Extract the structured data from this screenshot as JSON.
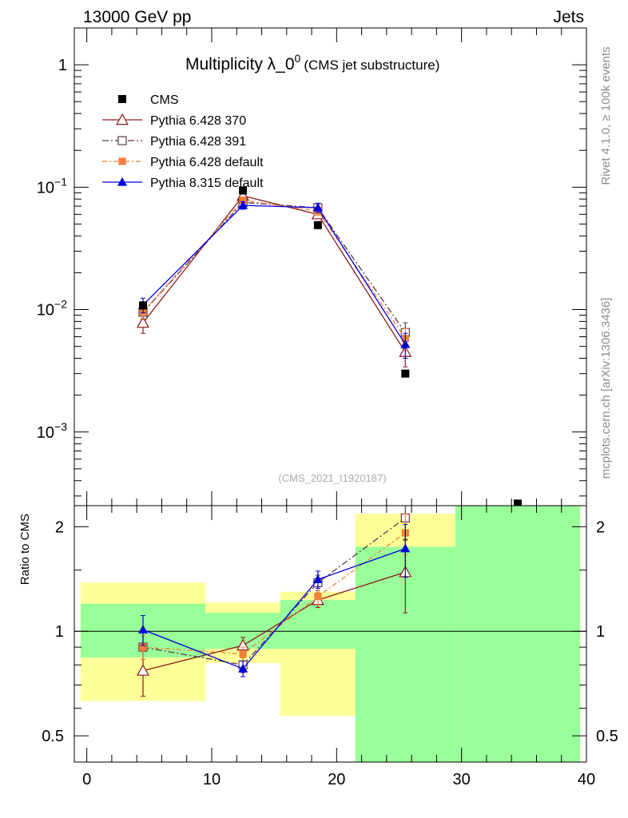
{
  "header": {
    "energy": "13000 GeV pp",
    "process": "Jets"
  },
  "side_labels": {
    "rivet": "Rivet 4.1.0, ≥ 100k events",
    "source": "mcplots.cern.ch [arXiv:1306.3436]"
  },
  "colors": {
    "cms": "#000000",
    "p370": "#8b1a1a",
    "p391": "#5a3a4a",
    "p6def": "#f47f3c",
    "p8": "#0000e0",
    "band_green": "#99ff99",
    "band_yellow": "#ffff99"
  },
  "chart_data": [
    {
      "type": "scatter",
      "panel": "main",
      "title": "Multiplicity λ_0",
      "title_sup": "0",
      "subtitle": "(CMS jet substructure)",
      "watermark": "(CMS_2021_I1920187)",
      "yscale": "log",
      "ylim": [
        0.00025,
        2
      ],
      "xlim": [
        -1,
        40
      ],
      "yticks": [
        {
          "value": 1,
          "base": "1",
          "exp": ""
        },
        {
          "value": 0.1,
          "base": "10",
          "exp": "−1"
        },
        {
          "value": 0.01,
          "base": "10",
          "exp": "−2"
        },
        {
          "value": 0.001,
          "base": "10",
          "exp": "−3"
        }
      ],
      "x": [
        4.5,
        12.5,
        18.5,
        25.5
      ],
      "cms": {
        "name": "CMS",
        "x": [
          4.5,
          12.5,
          18.5,
          25.5,
          34.5
        ],
        "values": [
          0.0108,
          0.094,
          0.049,
          0.003,
          0.00026
        ]
      },
      "series": [
        {
          "name": "Pythia 6.428 370",
          "values": [
            0.0078,
            0.085,
            0.06,
            0.0045
          ],
          "err": [
            0.0014,
            0.005,
            0.004,
            0.0011
          ]
        },
        {
          "name": "Pythia 6.428 391",
          "values": [
            0.0095,
            0.075,
            0.068,
            0.0065
          ],
          "err": [
            0.0012,
            0.005,
            0.005,
            0.0013
          ]
        },
        {
          "name": "Pythia 6.428 default",
          "values": [
            0.0096,
            0.078,
            0.064,
            0.0058
          ],
          "err": [
            0.0012,
            0.005,
            0.005,
            0.0012
          ]
        },
        {
          "name": "Pythia 8.315 default",
          "values": [
            0.0109,
            0.071,
            0.068,
            0.0052
          ],
          "err": [
            0.0015,
            0.005,
            0.006,
            0.0012
          ]
        }
      ]
    },
    {
      "type": "scatter",
      "panel": "ratio",
      "ylabel": "Ratio to CMS",
      "yscale": "log",
      "ylim": [
        0.42,
        2.3
      ],
      "xlim": [
        -1,
        40
      ],
      "yticks": [
        {
          "value": 0.5,
          "label": "0.5"
        },
        {
          "value": 1,
          "label": "1"
        },
        {
          "value": 2,
          "label": "2"
        }
      ],
      "xticks": [
        0,
        10,
        20,
        30,
        40
      ],
      "bands": [
        {
          "x": [
            -0.5,
            9.5
          ],
          "green": [
            0.84,
            1.2
          ],
          "yellow": [
            0.63,
            1.38
          ]
        },
        {
          "x": [
            9.5,
            15.5
          ],
          "green": [
            0.89,
            1.13
          ],
          "yellow": [
            0.81,
            1.21
          ]
        },
        {
          "x": [
            15.5,
            21.5
          ],
          "green": [
            0.89,
            1.23
          ],
          "yellow": [
            0.57,
            1.3
          ]
        },
        {
          "x": [
            21.5,
            29.5
          ],
          "green": [
            0.42,
            1.75
          ],
          "yellow": [
            0.42,
            2.18
          ]
        },
        {
          "x": [
            29.5,
            39.5
          ],
          "green": [
            0.42,
            2.3
          ],
          "yellow": [
            0.42,
            2.3
          ]
        }
      ],
      "x": [
        4.5,
        12.5,
        18.5,
        25.5
      ],
      "series": [
        {
          "name": "Pythia 6.428 370",
          "values": [
            0.77,
            0.91,
            1.23,
            1.48
          ],
          "err": [
            0.12,
            0.05,
            0.06,
            0.35
          ]
        },
        {
          "name": "Pythia 6.428 391",
          "values": [
            0.9,
            0.8,
            1.38,
            2.12
          ],
          "err": [
            0.07,
            0.04,
            0.07,
            0.28
          ]
        },
        {
          "name": "Pythia 6.428 default",
          "values": [
            0.9,
            0.86,
            1.26,
            1.92
          ],
          "err": [
            0.07,
            0.04,
            0.07,
            0.26
          ]
        },
        {
          "name": "Pythia 8.315 default",
          "values": [
            1.01,
            0.78,
            1.41,
            1.73
          ],
          "err": [
            0.1,
            0.04,
            0.08,
            0.3
          ]
        }
      ]
    }
  ]
}
